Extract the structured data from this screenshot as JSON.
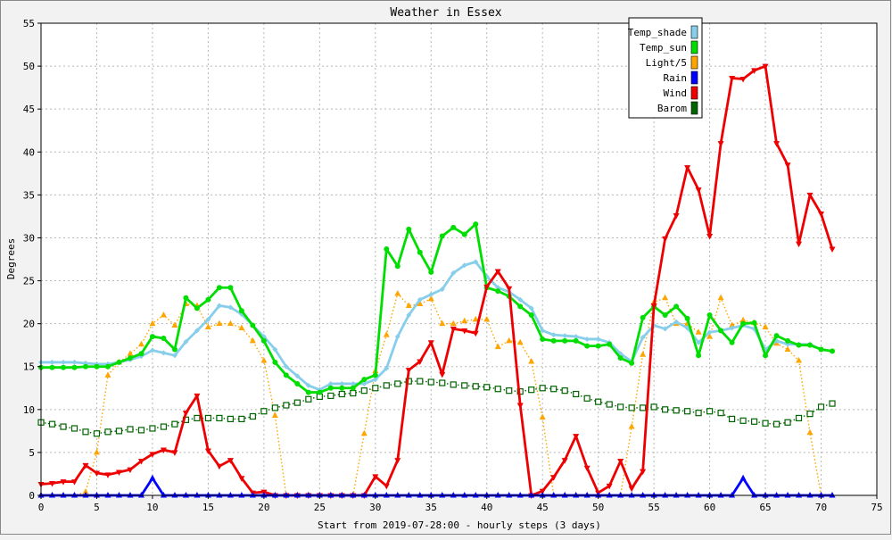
{
  "chart_data": {
    "type": "line",
    "title": "Weather in Essex",
    "xlabel": "Start from 2019-07-28:00 - hourly steps (3 days)",
    "ylabel": "Degrees",
    "xlim": [
      0,
      75
    ],
    "ylim": [
      0,
      55
    ],
    "xticks": [
      0,
      5,
      10,
      15,
      20,
      25,
      30,
      35,
      40,
      45,
      50,
      55,
      60,
      65,
      70,
      75
    ],
    "yticks": [
      0,
      5,
      10,
      15,
      20,
      25,
      30,
      35,
      40,
      45,
      50,
      55
    ],
    "grid": true,
    "legend_position": "top-right",
    "series": [
      {
        "name": "Temp_shade",
        "color": "#87ceeb",
        "marker": "diamond",
        "dotted": false,
        "values": [
          15.5,
          15.5,
          15.5,
          15.5,
          15.4,
          15.3,
          15.3,
          15.5,
          15.8,
          16.2,
          16.9,
          16.6,
          16.3,
          17.9,
          19.2,
          20.5,
          22.1,
          21.9,
          21.1,
          19.8,
          18.5,
          17.0,
          15.0,
          13.9,
          12.8,
          12.3,
          13.0,
          13.0,
          13.0,
          13.0,
          13.5,
          14.8,
          18.5,
          21.0,
          22.8,
          23.4,
          24.0,
          25.9,
          26.8,
          27.2,
          25.5,
          24.2,
          23.7,
          22.8,
          21.8,
          19.2,
          18.7,
          18.6,
          18.5,
          18.2,
          18.2,
          17.8,
          16.5,
          15.6,
          18.4,
          19.8,
          19.4,
          20.2,
          19.5,
          17.8,
          19.0,
          19.2,
          19.5,
          19.8,
          19.4,
          17.0,
          18.0,
          17.6,
          17.6,
          17.6,
          17.0,
          16.8
        ]
      },
      {
        "name": "Temp_sun",
        "color": "#00dd00",
        "marker": "circle",
        "dotted": false,
        "values": [
          14.9,
          14.9,
          14.9,
          14.9,
          15.0,
          15.0,
          15.0,
          15.5,
          16.0,
          16.5,
          18.5,
          18.3,
          17.0,
          23.0,
          21.8,
          22.8,
          24.2,
          24.2,
          21.5,
          19.8,
          18.0,
          15.5,
          14.0,
          13.0,
          12.0,
          12.0,
          12.5,
          12.5,
          12.5,
          13.5,
          14.0,
          28.7,
          26.7,
          31.0,
          28.3,
          26.0,
          30.2,
          31.2,
          30.4,
          31.6,
          24.2,
          23.8,
          23.2,
          22.0,
          21.0,
          18.2,
          18.0,
          18.0,
          18.0,
          17.4,
          17.4,
          17.6,
          16.0,
          15.4,
          20.7,
          22.0,
          21.0,
          22.0,
          20.6,
          16.3,
          21.0,
          19.2,
          17.8,
          20.0,
          20.1,
          16.3,
          18.6,
          18.0,
          17.5,
          17.5,
          17.0,
          16.8
        ]
      },
      {
        "name": "Light/5",
        "color": "#ffa500",
        "marker": "triangle-up",
        "dotted": true,
        "values": [
          0,
          0,
          0,
          0,
          0.4,
          5.0,
          14.0,
          15.5,
          16.5,
          17.6,
          20.0,
          21.0,
          19.8,
          22.3,
          22.1,
          19.6,
          20.0,
          20.0,
          19.5,
          18.0,
          15.7,
          9.3,
          0,
          0,
          0,
          0,
          0,
          0,
          0,
          7.2,
          14.5,
          18.7,
          23.5,
          22.1,
          22.3,
          22.9,
          20.0,
          20.0,
          20.3,
          20.5,
          20.5,
          17.3,
          18.0,
          17.8,
          15.6,
          9.1,
          0,
          0,
          0,
          0,
          0,
          0,
          0,
          8.0,
          16.4,
          22.5,
          23.0,
          20.0,
          20.0,
          19.0,
          18.5,
          23.0,
          19.8,
          20.4,
          20.1,
          19.6,
          17.7,
          17.0,
          15.7,
          7.3,
          0,
          0
        ]
      },
      {
        "name": "Rain",
        "color": "#0000ff",
        "marker": "triangle-up",
        "dotted": false,
        "values": [
          0,
          0,
          0,
          0,
          0,
          0,
          0,
          0,
          0,
          0,
          2.0,
          0,
          0,
          0,
          0,
          0,
          0,
          0,
          0,
          0,
          0,
          0,
          0,
          0,
          0,
          0,
          0,
          0,
          0,
          0,
          0,
          0,
          0,
          0,
          0,
          0,
          0,
          0,
          0,
          0,
          0,
          0,
          0,
          0,
          0,
          0,
          0,
          0,
          0,
          0,
          0,
          0,
          0,
          0,
          0,
          0,
          0,
          0,
          0,
          0,
          0,
          0,
          0,
          2.0,
          0,
          0,
          0,
          0,
          0,
          0,
          0,
          0
        ]
      },
      {
        "name": "Wind",
        "color": "#ee0000",
        "marker": "triangle-down",
        "dotted": false,
        "values": [
          1.3,
          1.4,
          1.6,
          1.6,
          3.5,
          2.6,
          2.4,
          2.7,
          3.0,
          4.0,
          4.8,
          5.3,
          5.0,
          9.6,
          11.6,
          5.2,
          3.4,
          4.1,
          2.0,
          0.3,
          0.4,
          0,
          0,
          0,
          0,
          0,
          0,
          0,
          0,
          0,
          2.2,
          1.1,
          4.1,
          14.6,
          15.6,
          17.8,
          14.1,
          19.4,
          19.2,
          18.9,
          24.3,
          26.1,
          24.1,
          10.5,
          0,
          0.5,
          2.1,
          4.1,
          6.9,
          3.2,
          0.3,
          1.1,
          4.0,
          0.8,
          2.8,
          22.1,
          29.9,
          32.6,
          38.2,
          35.6,
          30.2,
          41.0,
          48.6,
          48.5,
          49.5,
          50.0,
          41.0,
          38.5,
          29.3,
          35.0,
          32.8,
          28.7
        ]
      },
      {
        "name": "Barom",
        "color": "#006400",
        "marker": "square",
        "dotted": true,
        "values": [
          8.5,
          8.3,
          8.0,
          7.8,
          7.4,
          7.2,
          7.4,
          7.5,
          7.7,
          7.6,
          7.8,
          8.0,
          8.3,
          8.8,
          9.0,
          9.0,
          9.0,
          8.9,
          8.9,
          9.2,
          9.8,
          10.2,
          10.5,
          10.8,
          11.2,
          11.5,
          11.6,
          11.8,
          11.9,
          12.2,
          12.5,
          12.8,
          13.0,
          13.3,
          13.3,
          13.2,
          13.1,
          12.9,
          12.8,
          12.7,
          12.6,
          12.4,
          12.2,
          12.1,
          12.3,
          12.5,
          12.4,
          12.2,
          11.8,
          11.3,
          10.9,
          10.6,
          10.3,
          10.2,
          10.2,
          10.3,
          10.0,
          9.9,
          9.8,
          9.6,
          9.8,
          9.6,
          8.9,
          8.7,
          8.6,
          8.4,
          8.3,
          8.5,
          9.0,
          9.5,
          10.3,
          10.7
        ]
      }
    ]
  }
}
